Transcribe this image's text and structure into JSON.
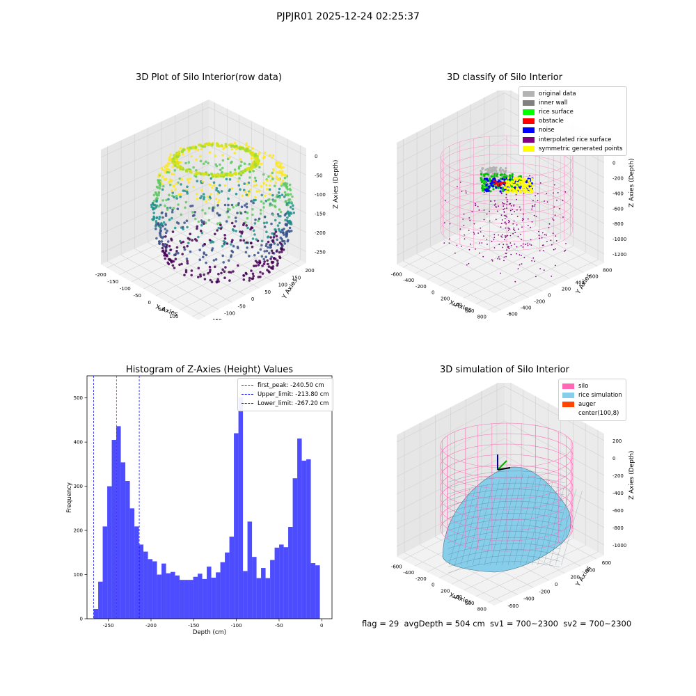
{
  "suptitle": "PJPJR01 2025-12-24 02:25:37",
  "status_line": "flag = 29  avgDepth = 504 cm  sv1 = 700~2300  sv2 = 700~2300",
  "plot1": {
    "title": "3D Plot of Silo Interior(row data)",
    "xlabel": "X Axies",
    "ylabel": "Y Axies",
    "zlabel": "Z Axies (Depth)",
    "xticks": [
      "-200",
      "-150",
      "-100",
      "-50",
      "0",
      "50",
      "100",
      "150"
    ],
    "yticks": [
      "-150",
      "-100",
      "-50",
      "0",
      "50",
      "100",
      "150",
      "200"
    ],
    "zticks": [
      "0",
      "-50",
      "-100",
      "-150",
      "-200",
      "-250"
    ],
    "colormap": [
      "#440154",
      "#3b528b",
      "#21918c",
      "#5ec962",
      "#fde725"
    ]
  },
  "plot2": {
    "title": "3D classify of Silo Interior",
    "xlabel": "X Axies",
    "ylabel": "Y Axies",
    "zlabel": "Z Axies (Depth)",
    "xticks": [
      "-600",
      "-400",
      "-200",
      "0",
      "200",
      "400",
      "600",
      "800"
    ],
    "yticks": [
      "-600",
      "-400",
      "-200",
      "0",
      "200",
      "400",
      "600",
      "800"
    ],
    "zticks": [
      "200",
      "0",
      "-200",
      "-400",
      "-600",
      "-800",
      "-1000",
      "-1200"
    ],
    "legend": [
      {
        "label": "original data",
        "color": "#b3b3b3"
      },
      {
        "label": "inner wall",
        "color": "#808080"
      },
      {
        "label": "rice surface",
        "color": "#00ff00"
      },
      {
        "label": "obstacle",
        "color": "#ff0000"
      },
      {
        "label": "noise",
        "color": "#0000ff"
      },
      {
        "label": "interpolated rice surface",
        "color": "#800080"
      },
      {
        "label": "symmetric generated points",
        "color": "#ffff00"
      }
    ],
    "silo_color": "#ff69b4"
  },
  "plot4": {
    "title": "3D simulation of Silo Interior",
    "xlabel": "X Axies",
    "ylabel": "Y Axies",
    "zlabel": "Z Axies (Depth)",
    "xticks": [
      "-600",
      "-400",
      "-200",
      "0",
      "200",
      "400",
      "600",
      "800"
    ],
    "yticks": [
      "-600",
      "-400",
      "-200",
      "0",
      "200",
      "400",
      "600"
    ],
    "zticks": [
      "200",
      "0",
      "-200",
      "-400",
      "-600",
      "-800",
      "-1000"
    ],
    "legend": [
      {
        "label": "silo",
        "color": "#ff69b4"
      },
      {
        "label": "rice simulation",
        "color": "#87ceeb"
      },
      {
        "label": "auger",
        "color": "#ff4500"
      },
      {
        "label": "center(100,8)",
        "color": ""
      }
    ]
  },
  "chart_data": {
    "type": "bar",
    "title": "Histogram of Z-Axies (Height) Values",
    "xlabel": "Depth (cm)",
    "ylabel": "Frequency",
    "bar_color": "#4d4dff",
    "xlim": [
      -275,
      12
    ],
    "ylim": [
      0,
      550
    ],
    "xticks": [
      -250,
      -200,
      -150,
      -100,
      -50,
      0
    ],
    "yticks": [
      0,
      100,
      200,
      300,
      400,
      500
    ],
    "bin_start": -267.2,
    "bin_width": 5.3,
    "values": [
      22,
      84,
      209,
      300,
      405,
      436,
      354,
      312,
      250,
      209,
      168,
      152,
      135,
      130,
      100,
      125,
      103,
      106,
      98,
      88,
      88,
      88,
      95,
      102,
      90,
      118,
      93,
      105,
      128,
      150,
      186,
      420,
      502,
      108,
      220,
      140,
      92,
      115,
      92,
      133,
      161,
      168,
      162,
      208,
      318,
      408,
      358,
      361,
      126,
      121
    ],
    "vlines": [
      {
        "label": "first_peak: -240.50 cm",
        "x": -240.5,
        "color": "#ff0000"
      },
      {
        "label": "Upper_limit: -213.80 cm",
        "x": -213.8,
        "color": "#0000ff"
      },
      {
        "label": "Lower_limit: -267.20 cm",
        "x": -267.2,
        "color": "#0000ff"
      }
    ],
    "legend_position": "top-right"
  }
}
